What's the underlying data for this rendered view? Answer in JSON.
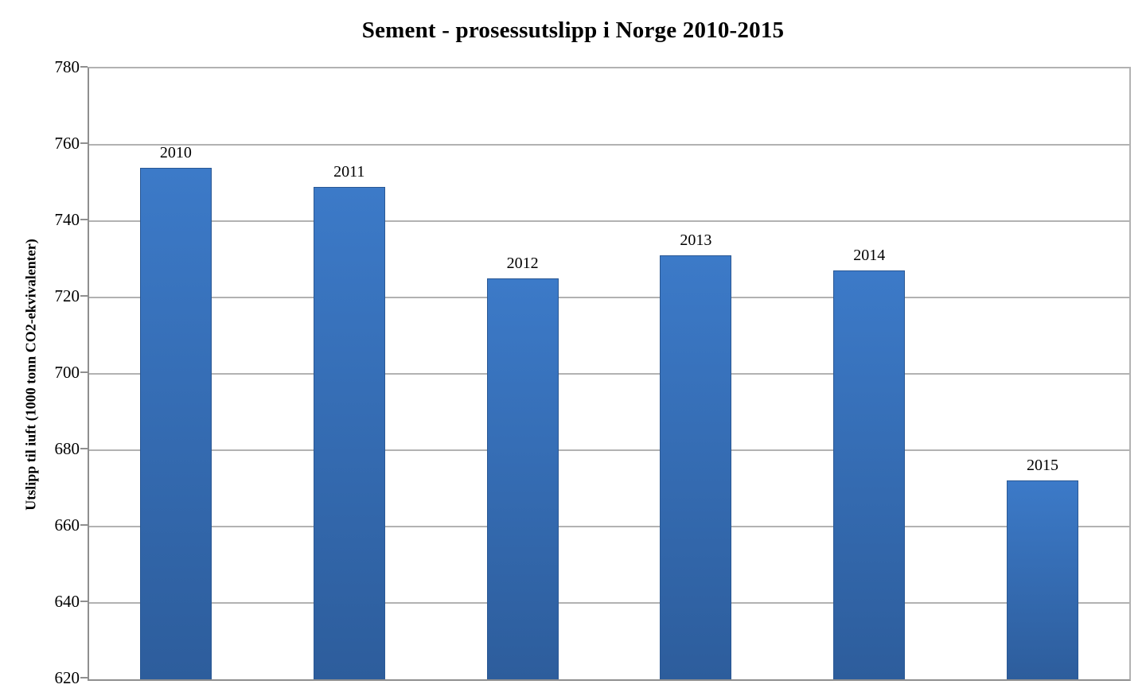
{
  "chart_data": {
    "type": "bar",
    "title": "Sement - prosessutslipp i Norge 2010-2015",
    "xlabel": "",
    "ylabel": "Utslipp til iuft (1000 tonn CO2-ekvivalenter)",
    "categories": [
      "2010",
      "2011",
      "2012",
      "2013",
      "2014",
      "2015"
    ],
    "values": [
      754,
      749,
      725,
      731,
      727,
      672
    ],
    "ylim": [
      620,
      780
    ],
    "yticks": [
      620,
      640,
      660,
      680,
      700,
      720,
      740,
      760,
      780
    ],
    "grid": "horizontal",
    "legend_position": "none",
    "bar_label_style": "year-above-bar",
    "colors": {
      "bar_gradient_top": "#3c7ac8",
      "bar_gradient_bottom": "#2d5d9c",
      "bar_border": "#2a5894",
      "gridline": "#b2b2b2",
      "axis_line": "#8f8f8f",
      "text": "#000000",
      "background": "#ffffff"
    }
  }
}
